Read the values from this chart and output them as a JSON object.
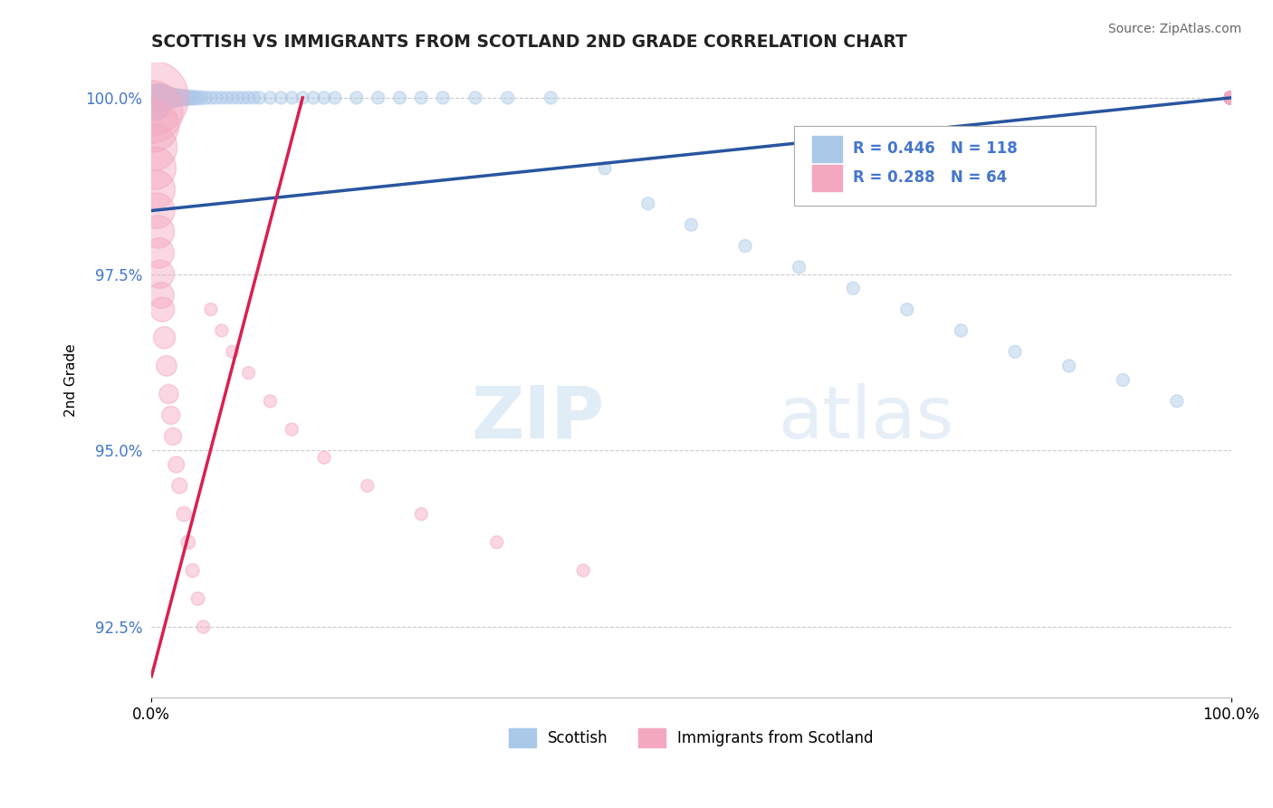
{
  "title": "SCOTTISH VS IMMIGRANTS FROM SCOTLAND 2ND GRADE CORRELATION CHART",
  "source": "Source: ZipAtlas.com",
  "ylabel": "2nd Grade",
  "xlim": [
    0.0,
    1.0
  ],
  "ylim": [
    0.915,
    1.005
  ],
  "yticks": [
    0.925,
    0.95,
    0.975,
    1.0
  ],
  "ytick_labels": [
    "92.5%",
    "95.0%",
    "97.5%",
    "100.0%"
  ],
  "xticks": [
    0.0,
    1.0
  ],
  "xtick_labels": [
    "0.0%",
    "100.0%"
  ],
  "blue_R": 0.446,
  "blue_N": 118,
  "pink_R": 0.288,
  "pink_N": 64,
  "legend_labels": [
    "Scottish",
    "Immigrants from Scotland"
  ],
  "blue_face_color": "#aac8e8",
  "pink_face_color": "#f4a8c0",
  "blue_line_color": "#2855a0",
  "pink_line_color": "#d82050",
  "grid_color": "#cccccc",
  "background_color": "#ffffff",
  "watermark_zip": "ZIP",
  "watermark_atlas": "atlas",
  "title_color": "#222222",
  "source_color": "#666666",
  "yaxis_color": "#4477cc",
  "legend_text_color": "#4477cc",
  "blue_scatter_x": [
    0.003,
    0.005,
    0.006,
    0.007,
    0.008,
    0.009,
    0.01,
    0.011,
    0.012,
    0.013,
    0.014,
    0.015,
    0.016,
    0.017,
    0.018,
    0.019,
    0.02,
    0.021,
    0.022,
    0.024,
    0.026,
    0.028,
    0.03,
    0.032,
    0.035,
    0.038,
    0.04,
    0.043,
    0.046,
    0.05,
    0.055,
    0.06,
    0.065,
    0.07,
    0.075,
    0.08,
    0.085,
    0.09,
    0.095,
    0.1,
    0.11,
    0.12,
    0.13,
    0.14,
    0.15,
    0.16,
    0.17,
    0.19,
    0.21,
    0.23,
    0.25,
    0.27,
    0.3,
    0.33,
    0.37,
    0.42,
    0.46,
    0.5,
    0.55,
    0.6,
    0.65,
    0.7,
    0.75,
    0.8,
    0.85,
    0.9,
    0.95,
    1.0,
    1.0,
    1.0,
    1.0,
    1.0,
    1.0,
    1.0,
    1.0,
    1.0,
    1.0,
    1.0,
    1.0,
    1.0,
    1.0,
    1.0,
    1.0,
    1.0,
    1.0,
    1.0,
    1.0,
    1.0,
    1.0,
    1.0,
    1.0,
    1.0,
    1.0,
    1.0,
    1.0,
    1.0,
    1.0,
    1.0,
    1.0,
    1.0,
    1.0,
    1.0,
    1.0,
    1.0,
    1.0,
    1.0,
    1.0,
    1.0,
    1.0,
    1.0,
    1.0,
    1.0,
    1.0,
    1.0,
    1.0
  ],
  "blue_scatter_y": [
    0.999,
    0.999,
    1.0,
    1.0,
    1.0,
    1.0,
    1.0,
    1.0,
    1.0,
    1.0,
    1.0,
    1.0,
    1.0,
    1.0,
    1.0,
    1.0,
    1.0,
    1.0,
    1.0,
    1.0,
    1.0,
    1.0,
    1.0,
    1.0,
    1.0,
    1.0,
    1.0,
    1.0,
    1.0,
    1.0,
    1.0,
    1.0,
    1.0,
    1.0,
    1.0,
    1.0,
    1.0,
    1.0,
    1.0,
    1.0,
    1.0,
    1.0,
    1.0,
    1.0,
    1.0,
    1.0,
    1.0,
    1.0,
    1.0,
    1.0,
    1.0,
    1.0,
    1.0,
    1.0,
    1.0,
    0.99,
    0.985,
    0.982,
    0.979,
    0.976,
    0.973,
    0.97,
    0.967,
    0.964,
    0.962,
    0.96,
    0.957,
    1.0,
    1.0,
    1.0,
    1.0,
    1.0,
    1.0,
    1.0,
    1.0,
    1.0,
    1.0,
    1.0,
    1.0,
    1.0,
    1.0,
    1.0,
    1.0,
    1.0,
    1.0,
    1.0,
    1.0,
    1.0,
    1.0,
    1.0,
    1.0,
    1.0,
    1.0,
    1.0,
    1.0,
    1.0,
    1.0,
    1.0,
    1.0,
    1.0,
    1.0,
    1.0,
    1.0,
    1.0,
    1.0,
    1.0,
    1.0,
    1.0,
    1.0,
    1.0,
    1.0,
    1.0,
    1.0,
    1.0,
    1.0
  ],
  "blue_scatter_sizes": [
    120,
    110,
    100,
    95,
    90,
    85,
    80,
    75,
    70,
    65,
    60,
    55,
    52,
    50,
    48,
    46,
    44,
    42,
    40,
    38,
    36,
    34,
    32,
    30,
    28,
    26,
    25,
    24,
    23,
    22,
    21,
    20,
    20,
    20,
    20,
    20,
    20,
    20,
    20,
    20,
    20,
    20,
    20,
    20,
    20,
    20,
    20,
    20,
    20,
    20,
    20,
    20,
    20,
    20,
    20,
    20,
    20,
    20,
    20,
    20,
    20,
    20,
    20,
    20,
    20,
    20,
    20,
    20,
    20,
    20,
    20,
    20,
    20,
    20,
    20,
    20,
    20,
    20,
    20,
    20,
    20,
    20,
    20,
    20,
    20,
    20,
    20,
    20,
    20,
    20,
    20,
    20,
    20,
    20,
    20,
    20,
    20,
    20,
    20,
    20,
    20,
    20,
    20,
    20,
    20,
    20,
    20,
    20,
    20,
    20,
    20,
    20,
    20,
    20,
    20
  ],
  "pink_scatter_x": [
    0.0,
    0.0,
    0.001,
    0.002,
    0.003,
    0.004,
    0.005,
    0.006,
    0.007,
    0.008,
    0.009,
    0.01,
    0.012,
    0.014,
    0.016,
    0.018,
    0.02,
    0.023,
    0.026,
    0.03,
    0.034,
    0.038,
    0.043,
    0.048,
    0.055,
    0.065,
    0.075,
    0.09,
    0.11,
    0.13,
    0.16,
    0.2,
    0.25,
    0.32,
    0.4,
    1.0,
    1.0,
    1.0,
    1.0,
    1.0,
    1.0,
    1.0,
    1.0,
    1.0,
    1.0,
    1.0,
    1.0,
    1.0,
    1.0,
    1.0,
    1.0,
    1.0,
    1.0,
    1.0,
    1.0,
    1.0,
    1.0,
    1.0,
    1.0,
    1.0,
    1.0,
    1.0,
    1.0,
    1.0,
    1.0
  ],
  "pink_scatter_y": [
    1.0,
    0.998,
    0.996,
    0.993,
    0.99,
    0.987,
    0.984,
    0.981,
    0.978,
    0.975,
    0.972,
    0.97,
    0.966,
    0.962,
    0.958,
    0.955,
    0.952,
    0.948,
    0.945,
    0.941,
    0.937,
    0.933,
    0.929,
    0.925,
    0.97,
    0.967,
    0.964,
    0.961,
    0.957,
    0.953,
    0.949,
    0.945,
    0.941,
    0.937,
    0.933,
    1.0,
    1.0,
    1.0,
    1.0,
    1.0,
    1.0,
    1.0,
    1.0,
    1.0,
    1.0,
    1.0,
    1.0,
    1.0,
    1.0,
    1.0,
    1.0,
    1.0,
    1.0,
    1.0,
    1.0,
    1.0,
    1.0,
    1.0,
    1.0,
    1.0,
    1.0,
    1.0,
    1.0,
    1.0,
    1.0
  ],
  "pink_scatter_sizes": [
    700,
    500,
    350,
    280,
    230,
    190,
    160,
    135,
    115,
    100,
    85,
    75,
    60,
    52,
    46,
    41,
    37,
    33,
    30,
    27,
    25,
    23,
    22,
    21,
    20,
    20,
    20,
    20,
    20,
    20,
    20,
    20,
    20,
    20,
    20,
    20,
    20,
    20,
    20,
    20,
    20,
    20,
    20,
    20,
    20,
    20,
    20,
    20,
    20,
    20,
    20,
    20,
    20,
    20,
    20,
    20,
    20,
    20,
    20,
    20,
    20,
    20,
    20,
    20,
    20
  ],
  "blue_trend_x": [
    0.0,
    1.0
  ],
  "blue_trend_y": [
    0.984,
    1.0
  ],
  "pink_trend_x": [
    0.0,
    0.14
  ],
  "pink_trend_y": [
    0.918,
    1.0
  ]
}
